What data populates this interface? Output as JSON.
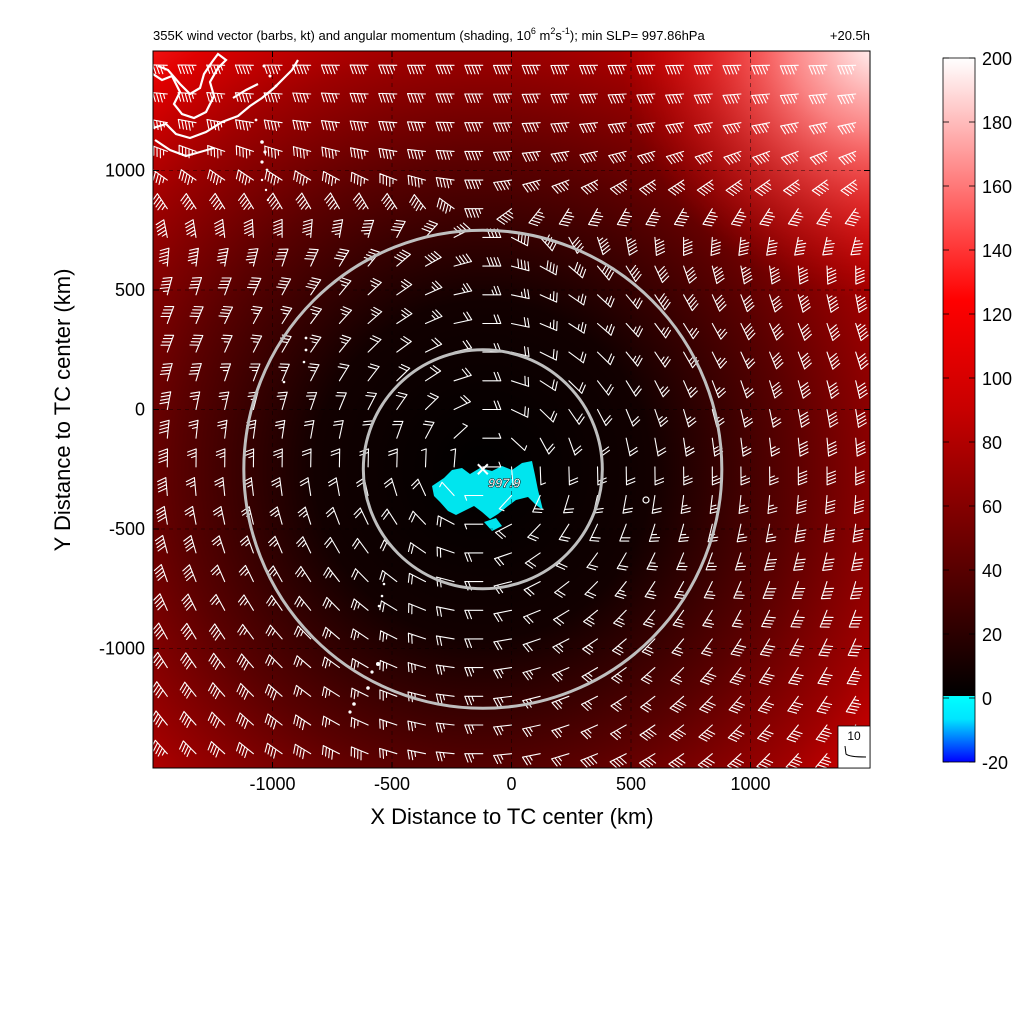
{
  "chart_data": {
    "type": "heatmap",
    "title": {
      "main": "355K wind vector (barbs, kt) and angular momentum (shading, 10",
      "sup1": "6",
      "mid1": " m",
      "sup2": "2",
      "mid2": "s",
      "sup3": "-1",
      "tail": "); min SLP= 997.86hPa",
      "time": "+20.5h"
    },
    "xlabel": "X Distance to TC center (km)",
    "ylabel": "Y Distance to TC center (km)",
    "xlim": [
      -1500,
      1500
    ],
    "ylim": [
      -1500,
      1500
    ],
    "x_ticks": [
      -1000,
      -500,
      0,
      500,
      1000
    ],
    "y_ticks": [
      -1000,
      -500,
      0,
      500,
      1000
    ],
    "x_tick_labels": [
      "-1000",
      "-500",
      "0",
      "500",
      "1000"
    ],
    "y_tick_labels": [
      "-1000",
      "-500",
      "0",
      "500",
      "1000"
    ],
    "grid": true,
    "colorbar": {
      "range": [
        -20,
        200
      ],
      "ticks": [
        -20,
        0,
        20,
        40,
        60,
        80,
        100,
        120,
        140,
        160,
        180,
        200
      ],
      "tick_labels": [
        "-20",
        "0",
        "20",
        "40",
        "60",
        "80",
        "100",
        "120",
        "140",
        "160",
        "180",
        "200"
      ],
      "colors": {
        "negative_low": "#0000ff",
        "negative_high": "#00ffff",
        "zero": "#000000",
        "mid": "#ff0000",
        "max": "#ffffff"
      }
    },
    "center_marker": {
      "x": -120,
      "y": -250,
      "label": "997.9"
    },
    "range_rings_km": [
      500,
      1000
    ],
    "ring_center": {
      "x": -120,
      "y": -250
    },
    "barb_reference": {
      "label": "10",
      "unit": "kt"
    },
    "colors": {
      "ring": "#bfbfbf",
      "barb": "#ffffff",
      "coast": "#ffffff",
      "negative_patch": "#00e5ee"
    }
  }
}
